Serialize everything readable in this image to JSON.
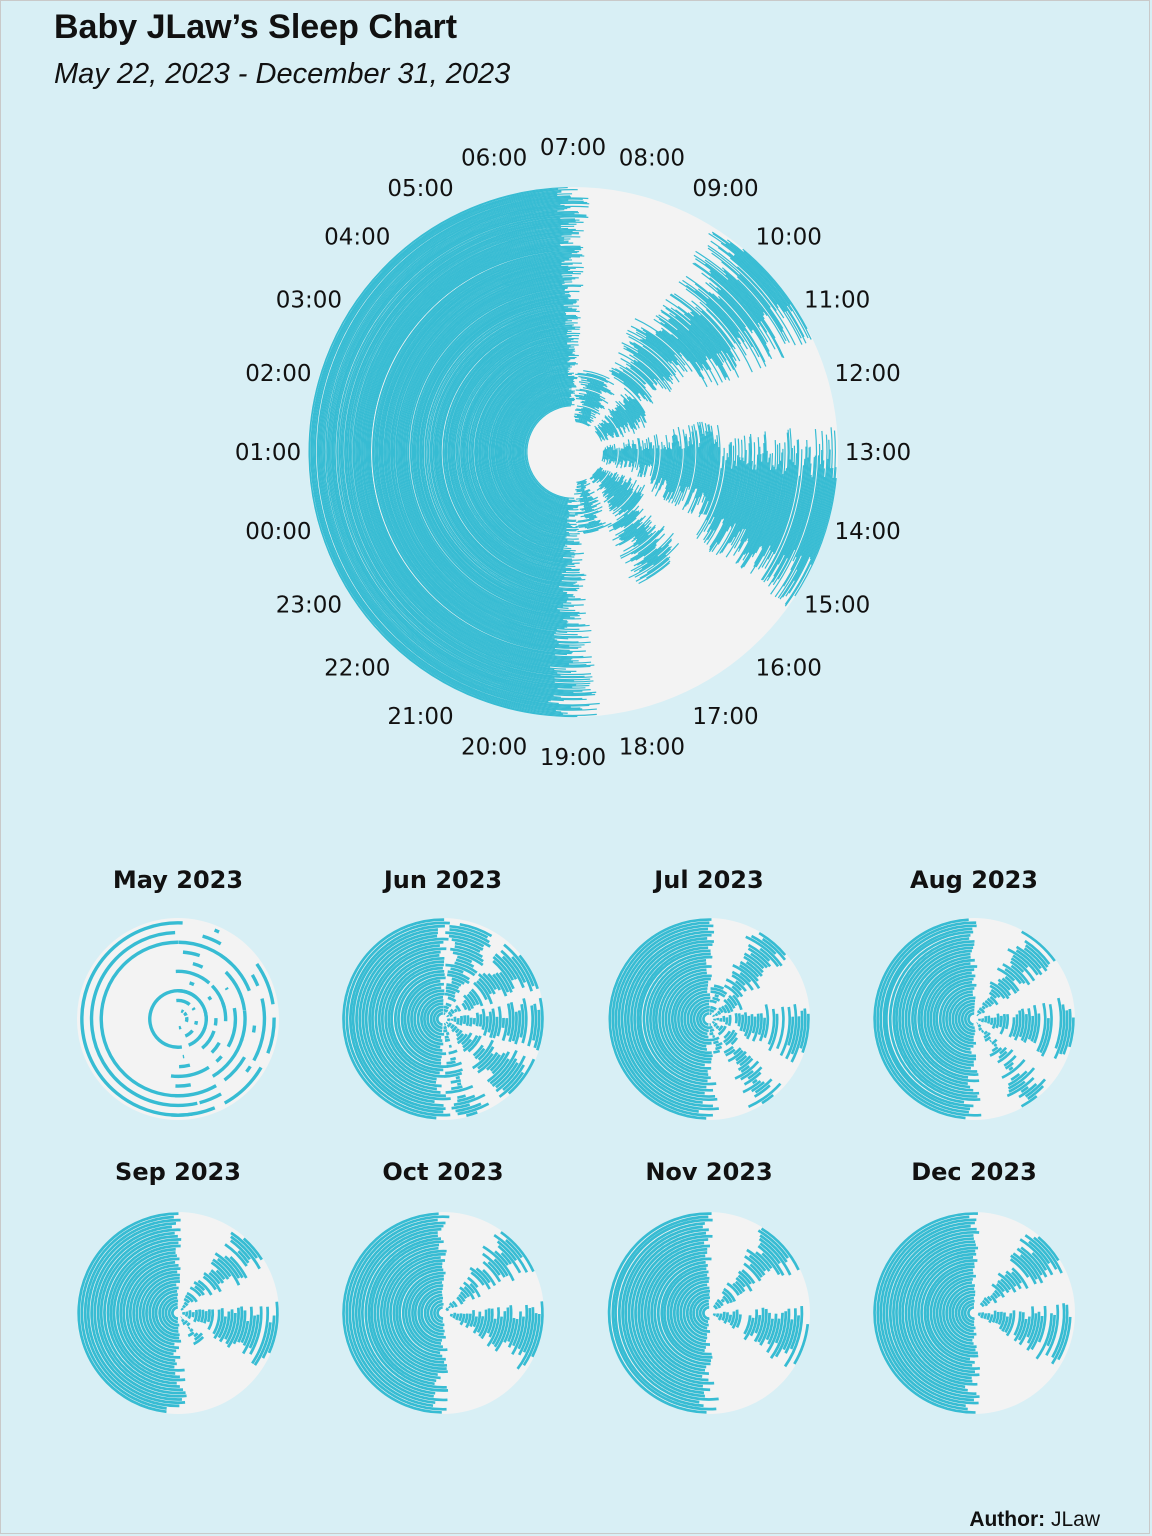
{
  "title": "Baby JLaw’s Sleep Chart",
  "subtitle": "May 22, 2023 - December 31, 2023",
  "author": {
    "label": "Author:",
    "name": "JLaw"
  },
  "colors": {
    "sleep": "#37bcd3",
    "awake": "#f3f3f3",
    "background": "#d8eff5"
  },
  "chart_data": {
    "type": "polar-bar",
    "description_of_axes": "angle = time of day (clock), radius = day (earliest at center)",
    "date_range": [
      "2023-05-22",
      "2023-12-31"
    ],
    "hour_tick_labels": [
      "07:00",
      "08:00",
      "09:00",
      "10:00",
      "11:00",
      "12:00",
      "13:00",
      "14:00",
      "15:00",
      "16:00",
      "17:00",
      "18:00",
      "19:00",
      "20:00",
      "21:00",
      "22:00",
      "23:00",
      "00:00",
      "01:00",
      "02:00",
      "03:00",
      "04:00",
      "05:00",
      "06:00"
    ],
    "night_sleep_window": {
      "start": "19:00",
      "end": "07:00"
    },
    "nap_windows_by_period": {
      "early (May-Jun)": [
        [
          "07:30",
          "09:00"
        ],
        [
          "10:00",
          "11:30"
        ],
        [
          "12:30",
          "14:00"
        ],
        [
          "15:00",
          "16:30"
        ],
        [
          "17:30",
          "18:30"
        ]
      ],
      "mid (Jul-Aug)": [
        [
          "09:00",
          "10:30"
        ],
        [
          "12:30",
          "14:30"
        ],
        [
          "16:00",
          "17:00"
        ]
      ],
      "late (Sep-Dec)": [
        [
          "09:30",
          "11:00"
        ],
        [
          "13:00",
          "15:00"
        ]
      ]
    },
    "panels": [
      {
        "label": "May 2023",
        "days": 10
      },
      {
        "label": "Jun 2023",
        "days": 30
      },
      {
        "label": "Jul 2023",
        "days": 31
      },
      {
        "label": "Aug 2023",
        "days": 31
      },
      {
        "label": "Sep 2023",
        "days": 30
      },
      {
        "label": "Oct 2023",
        "days": 31
      },
      {
        "label": "Nov 2023",
        "days": 30
      },
      {
        "label": "Dec 2023",
        "days": 31
      }
    ]
  }
}
